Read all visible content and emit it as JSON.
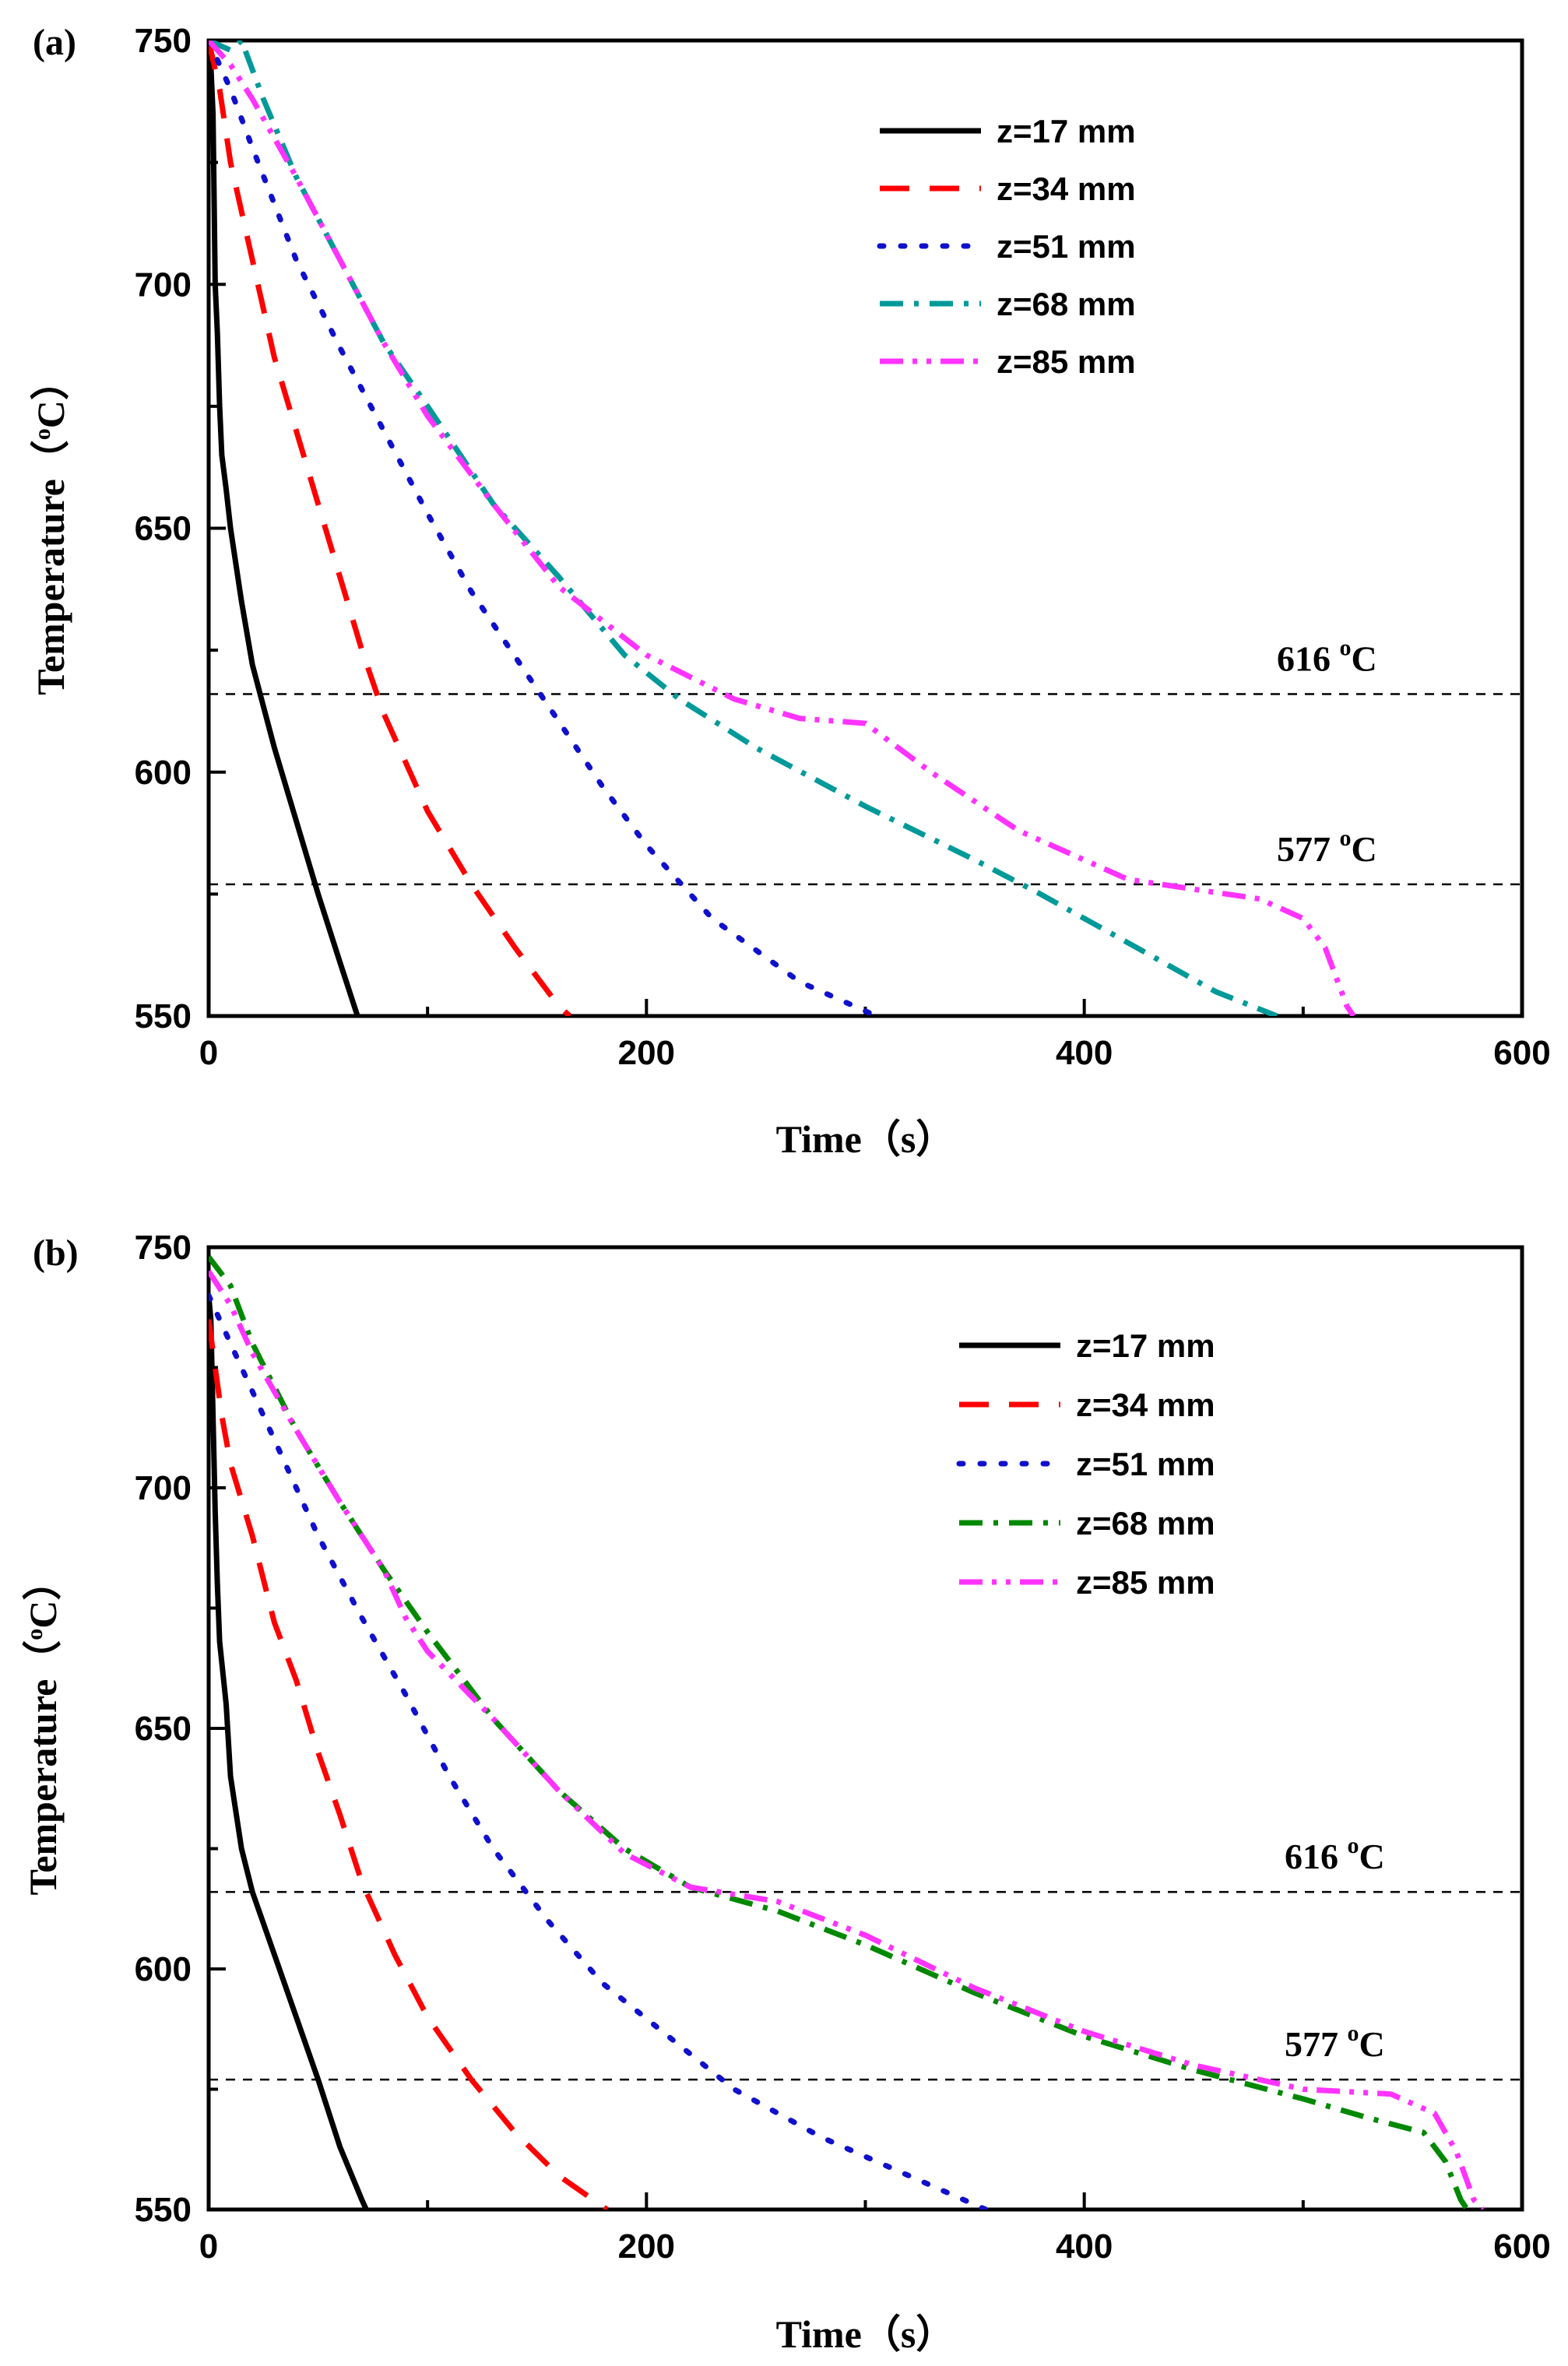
{
  "chart_data": [
    {
      "panel_label": "(a)",
      "type": "line",
      "xlabel": "Time（s）",
      "ylabel": "Temperature（",
      "ylabel_sup": "o",
      "ylabel_end": "C）",
      "xlim": [
        0,
        600
      ],
      "ylim": [
        550,
        750
      ],
      "xticks": [
        0,
        200,
        400,
        600
      ],
      "yticks": [
        550,
        600,
        650,
        700,
        750
      ],
      "grid": false,
      "legend_position": "top-right",
      "reference_lines": [
        {
          "value": 616,
          "label": "616 ",
          "sup": "o",
          "unit": "C"
        },
        {
          "value": 577,
          "label": "577 ",
          "sup": "o",
          "unit": "C"
        }
      ],
      "series": [
        {
          "name": "z=17 mm",
          "color": "#000000",
          "dash": "solid",
          "points": [
            [
              0,
              750
            ],
            [
              1,
              745
            ],
            [
              2,
              735
            ],
            [
              3,
              700
            ],
            [
              4,
              690
            ],
            [
              5,
              675
            ],
            [
              6,
              665
            ],
            [
              8,
              658
            ],
            [
              10,
              650
            ],
            [
              15,
              635
            ],
            [
              20,
              622
            ],
            [
              30,
              605
            ],
            [
              40,
              590
            ],
            [
              50,
              575
            ],
            [
              60,
              561
            ],
            [
              68,
              550
            ]
          ]
        },
        {
          "name": "z=34 mm",
          "color": "#ff0000",
          "dash": "longdash",
          "points": [
            [
              0,
              750
            ],
            [
              5,
              740
            ],
            [
              10,
              725
            ],
            [
              20,
              705
            ],
            [
              30,
              685
            ],
            [
              40,
              670
            ],
            [
              50,
              655
            ],
            [
              60,
              640
            ],
            [
              70,
              625
            ],
            [
              80,
              612
            ],
            [
              100,
              592
            ],
            [
              120,
              577
            ],
            [
              140,
              564
            ],
            [
              160,
              552
            ],
            [
              165,
              550
            ]
          ]
        },
        {
          "name": "z=51 mm",
          "color": "#1010cc",
          "dash": "dot",
          "points": [
            [
              0,
              750
            ],
            [
              10,
              740
            ],
            [
              20,
              728
            ],
            [
              40,
              705
            ],
            [
              60,
              687
            ],
            [
              80,
              670
            ],
            [
              100,
              653
            ],
            [
              120,
              637
            ],
            [
              150,
              617
            ],
            [
              180,
              597
            ],
            [
              200,
              585
            ],
            [
              230,
              570
            ],
            [
              270,
              557
            ],
            [
              300,
              551
            ],
            [
              305,
              550
            ]
          ]
        },
        {
          "name": "z=68 mm",
          "color": "#009999",
          "dash": "dashdot",
          "points": [
            [
              0,
              750
            ],
            [
              10,
              748
            ],
            [
              15,
              750
            ],
            [
              25,
              738
            ],
            [
              40,
              722
            ],
            [
              60,
              705
            ],
            [
              80,
              688
            ],
            [
              100,
              675
            ],
            [
              130,
              655
            ],
            [
              160,
              640
            ],
            [
              190,
              624
            ],
            [
              215,
              615
            ],
            [
              250,
              605
            ],
            [
              300,
              593
            ],
            [
              350,
              582
            ],
            [
              380,
              575
            ],
            [
              420,
              565
            ],
            [
              460,
              555
            ],
            [
              488,
              550
            ]
          ]
        },
        {
          "name": "z=85 mm",
          "color": "#ff33ff",
          "dash": "dashdotdot",
          "points": [
            [
              0,
              750
            ],
            [
              10,
              745
            ],
            [
              20,
              738
            ],
            [
              40,
              722
            ],
            [
              60,
              705
            ],
            [
              80,
              688
            ],
            [
              100,
              673
            ],
            [
              130,
              655
            ],
            [
              160,
              638
            ],
            [
              200,
              624
            ],
            [
              240,
              615
            ],
            [
              270,
              611
            ],
            [
              300,
              610
            ],
            [
              330,
              600
            ],
            [
              370,
              588
            ],
            [
              420,
              578
            ],
            [
              450,
              576
            ],
            [
              480,
              574
            ],
            [
              500,
              570
            ],
            [
              510,
              564
            ],
            [
              520,
              552
            ],
            [
              523,
              550
            ]
          ]
        }
      ]
    },
    {
      "panel_label": "(b)",
      "type": "line",
      "xlabel": "Time（s）",
      "ylabel": "Temperature（",
      "ylabel_sup": "o",
      "ylabel_end": "C）",
      "xlim": [
        0,
        600
      ],
      "ylim": [
        550,
        750
      ],
      "xticks": [
        0,
        200,
        400,
        600
      ],
      "yticks": [
        550,
        600,
        650,
        700,
        750
      ],
      "grid": false,
      "legend_position": "top-right",
      "reference_lines": [
        {
          "value": 616,
          "label": "616 ",
          "sup": "o",
          "unit": "C"
        },
        {
          "value": 577,
          "label": "577 ",
          "sup": "o",
          "unit": "C"
        }
      ],
      "series": [
        {
          "name": "z=17 mm",
          "color": "#000000",
          "dash": "solid",
          "points": [
            [
              0,
              740
            ],
            [
              1,
              735
            ],
            [
              2,
              715
            ],
            [
              3,
              695
            ],
            [
              4,
              680
            ],
            [
              5,
              668
            ],
            [
              8,
              655
            ],
            [
              10,
              640
            ],
            [
              15,
              625
            ],
            [
              20,
              616
            ],
            [
              30,
              603
            ],
            [
              40,
              590
            ],
            [
              50,
              577
            ],
            [
              60,
              563
            ],
            [
              70,
              552
            ],
            [
              72,
              550
            ]
          ]
        },
        {
          "name": "z=34 mm",
          "color": "#ff0000",
          "dash": "longdash",
          "points": [
            [
              0,
              735
            ],
            [
              3,
              725
            ],
            [
              6,
              715
            ],
            [
              10,
              705
            ],
            [
              20,
              690
            ],
            [
              30,
              672
            ],
            [
              40,
              660
            ],
            [
              50,
              645
            ],
            [
              60,
              632
            ],
            [
              70,
              618
            ],
            [
              85,
              603
            ],
            [
              100,
              590
            ],
            [
              120,
              577
            ],
            [
              140,
              566
            ],
            [
              160,
              557
            ],
            [
              182,
              550
            ]
          ]
        },
        {
          "name": "z=51 mm",
          "color": "#1010cc",
          "dash": "dot",
          "points": [
            [
              0,
              740
            ],
            [
              10,
              730
            ],
            [
              30,
              710
            ],
            [
              50,
              690
            ],
            [
              70,
              673
            ],
            [
              90,
              657
            ],
            [
              110,
              640
            ],
            [
              130,
              625
            ],
            [
              155,
              610
            ],
            [
              180,
              597
            ],
            [
              210,
              586
            ],
            [
              240,
              575
            ],
            [
              280,
              565
            ],
            [
              320,
              557
            ],
            [
              355,
              550
            ]
          ]
        },
        {
          "name": "z=68 mm",
          "color": "#008800",
          "dash": "dashdot",
          "points": [
            [
              0,
              748
            ],
            [
              10,
              742
            ],
            [
              20,
              730
            ],
            [
              40,
              712
            ],
            [
              60,
              697
            ],
            [
              80,
              683
            ],
            [
              100,
              670
            ],
            [
              130,
              652
            ],
            [
              160,
              637
            ],
            [
              190,
              625
            ],
            [
              220,
              617
            ],
            [
              260,
              612
            ],
            [
              300,
              605
            ],
            [
              350,
              595
            ],
            [
              400,
              586
            ],
            [
              450,
              579
            ],
            [
              500,
              573
            ],
            [
              530,
              569
            ],
            [
              555,
              566
            ],
            [
              565,
              560
            ],
            [
              572,
              552
            ],
            [
              575,
              550
            ]
          ]
        },
        {
          "name": "z=85 mm",
          "color": "#ff33ff",
          "dash": "dashdotdot",
          "points": [
            [
              0,
              745
            ],
            [
              10,
              738
            ],
            [
              20,
              728
            ],
            [
              40,
              712
            ],
            [
              60,
              697
            ],
            [
              80,
              683
            ],
            [
              90,
              673
            ],
            [
              100,
              666
            ],
            [
              130,
              652
            ],
            [
              160,
              637
            ],
            [
              190,
              624
            ],
            [
              220,
              617
            ],
            [
              260,
              614
            ],
            [
              300,
              607
            ],
            [
              350,
              596
            ],
            [
              400,
              587
            ],
            [
              450,
              580
            ],
            [
              500,
              575
            ],
            [
              540,
              574
            ],
            [
              560,
              570
            ],
            [
              570,
              562
            ],
            [
              578,
              552
            ],
            [
              582,
              550
            ]
          ]
        }
      ]
    }
  ]
}
